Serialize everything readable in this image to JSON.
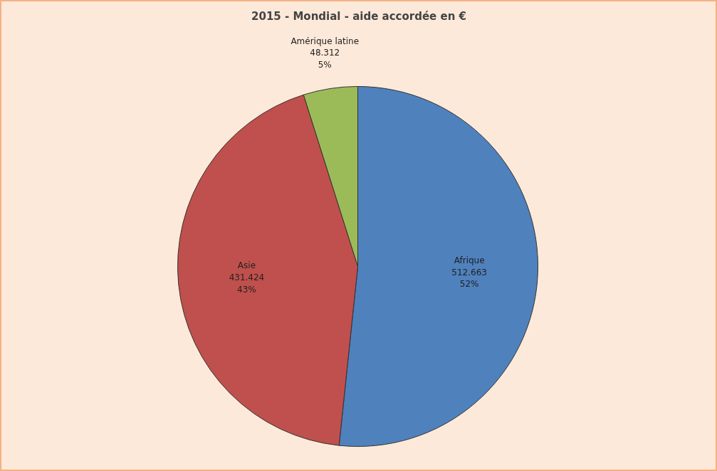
{
  "chart_data": {
    "type": "pie",
    "title": "2015 - Mondial - aide accordée en €",
    "categories": [
      "Afrique",
      "Asie",
      "Amérique latine"
    ],
    "values": [
      512.663,
      431.424,
      48.312
    ],
    "colors": [
      "#4f81bd",
      "#c0504d",
      "#9bbb59"
    ],
    "value_labels": [
      "512.663\n52%",
      "431.424\n43%",
      "48.312\n5%"
    ]
  }
}
